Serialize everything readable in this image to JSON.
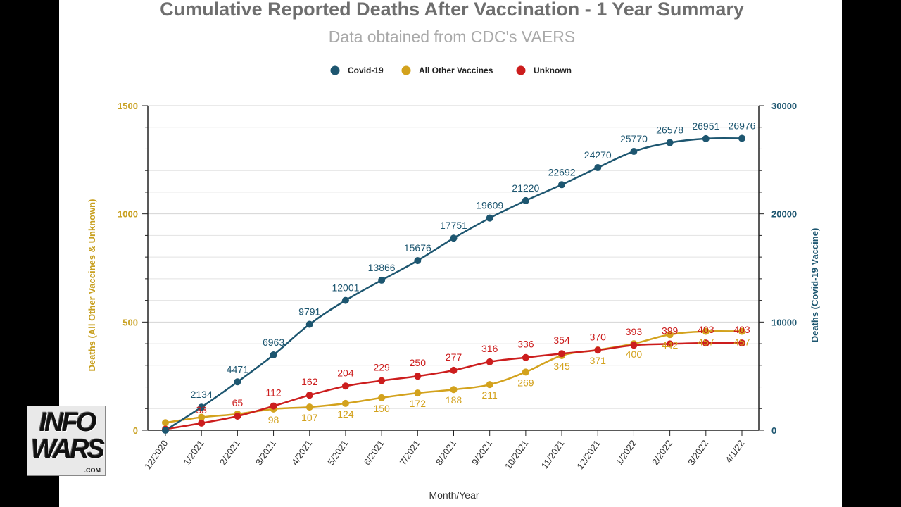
{
  "colors": {
    "covid": "#1d5670",
    "other": "#d3a21d",
    "unknown": "#cc1d1d",
    "left_axis": "#c8a020",
    "right_axis": "#1d5670",
    "grid": "#e2e2e2",
    "title": "#6e6e6e",
    "subtitle": "#a9a9a9"
  },
  "logo": {
    "line1": "INFO",
    "line2": "WARS",
    "suffix": ".COM"
  },
  "chart_data": {
    "type": "line",
    "title": "Cumulative Reported Deaths After Vaccination - 1 Year Summary",
    "subtitle": "Data obtained from CDC's VAERS",
    "xlabel": "Month/Year",
    "ylabel_left": "Deaths (All Other Vaccines & Unknown)",
    "ylabel_right": "Deaths (Covid-19 Vaccine)",
    "ylim_left": [
      0,
      1500
    ],
    "ylim_right": [
      0,
      30000
    ],
    "yticks_left": [
      "0",
      "500",
      "1000",
      "1500"
    ],
    "yticks_right": [
      "0",
      "10000",
      "20000",
      "30000"
    ],
    "legend_position": "top-center",
    "categories": [
      "12/2020",
      "1/2021",
      "2/2021",
      "3/2021",
      "4/2021",
      "5/2021",
      "6/2021",
      "7/2021",
      "8/2021",
      "9/2021",
      "10/2021",
      "11/2021",
      "12/2021",
      "1/2022",
      "2/2022",
      "3/2022",
      "4/1/22"
    ],
    "series": [
      {
        "name": "Covid-19",
        "axis": "right",
        "color": "#1d5670",
        "values": [
          0,
          2134,
          4471,
          6963,
          9791,
          12001,
          13866,
          15676,
          17751,
          19609,
          21220,
          22692,
          24270,
          25770,
          26578,
          26951,
          26976
        ],
        "labels": [
          "",
          "2134",
          "4471",
          "6963",
          "9791",
          "12001",
          "13866",
          "15676",
          "17751",
          "19609",
          "21220",
          "22692",
          "24270",
          "25770",
          "26578",
          "26951",
          "26976"
        ]
      },
      {
        "name": "All Other Vaccines",
        "axis": "left",
        "color": "#d3a21d",
        "values": [
          35,
          60,
          75,
          98,
          107,
          124,
          150,
          172,
          188,
          211,
          269,
          345,
          371,
          400,
          442,
          457,
          457
        ],
        "labels": [
          "",
          "",
          "",
          "98",
          "107",
          "124",
          "150",
          "172",
          "188",
          "211",
          "269",
          "345",
          "371",
          "400",
          "442",
          "457",
          "457"
        ]
      },
      {
        "name": "Unknown",
        "axis": "left",
        "color": "#cc1d1d",
        "values": [
          5,
          33,
          65,
          112,
          162,
          204,
          229,
          250,
          277,
          316,
          336,
          354,
          370,
          393,
          399,
          403,
          403
        ],
        "labels": [
          "",
          "33",
          "65",
          "112",
          "162",
          "204",
          "229",
          "250",
          "277",
          "316",
          "336",
          "354",
          "370",
          "393",
          "399",
          "403",
          "403"
        ]
      }
    ]
  }
}
